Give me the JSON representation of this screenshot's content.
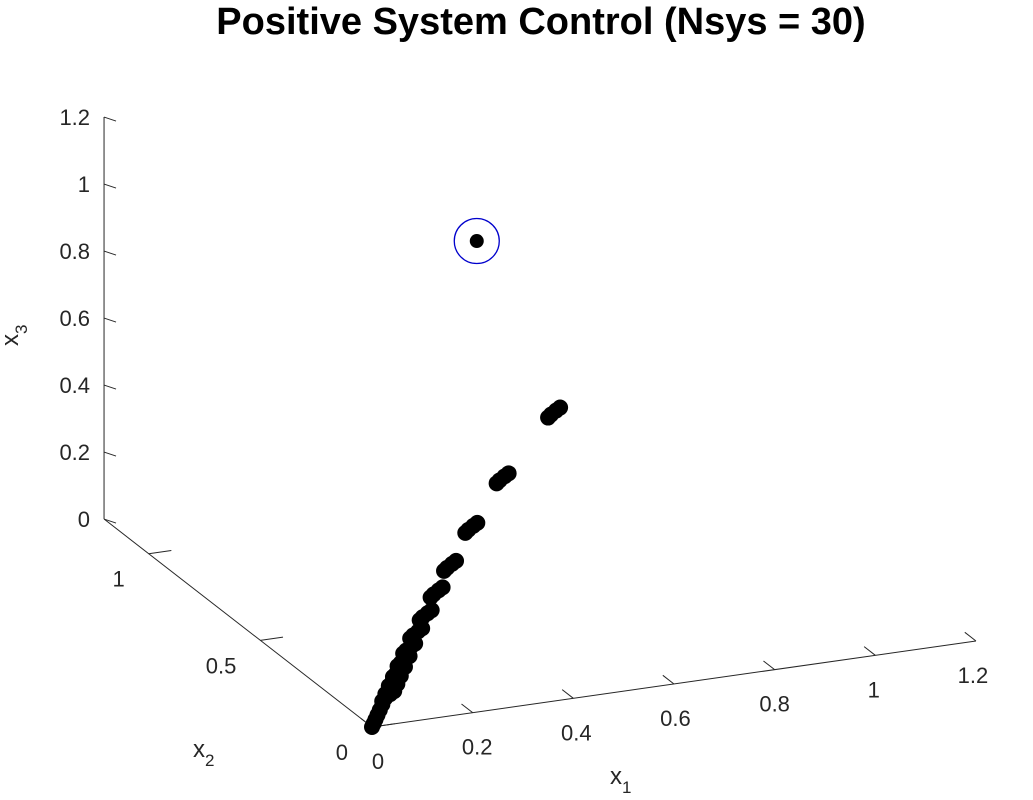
{
  "chart_data": {
    "type": "scatter",
    "title": "Positive System Control (Nsys = 30)",
    "axes": {
      "x": {
        "label": "x",
        "subscript": "1",
        "range": [
          0,
          1.2
        ],
        "ticks": [
          "0",
          "0.2",
          "0.4",
          "0.6",
          "0.8",
          "1",
          "1.2"
        ]
      },
      "y": {
        "label": "x",
        "subscript": "2",
        "range": [
          0,
          1.2
        ],
        "ticks": [
          "0",
          "0.5",
          "1"
        ]
      },
      "z": {
        "label": "x",
        "subscript": "3",
        "range": [
          0,
          1.2
        ],
        "ticks": [
          "0",
          "0.2",
          "0.4",
          "0.6",
          "0.8",
          "1",
          "1.2"
        ]
      }
    },
    "grid": false,
    "legend": "none",
    "marker_color": "#000000",
    "target_ring_color": "#0000cc",
    "target": {
      "x1": 0.43,
      "x2": 0.5,
      "x3": 1.1
    },
    "clusters": [
      {
        "x1": 0.0,
        "x2": 0.0,
        "x3": 0.0
      },
      {
        "x1": 0.007,
        "x2": 0.008,
        "x3": 0.005
      },
      {
        "x1": 0.014,
        "x2": 0.016,
        "x3": 0.011
      },
      {
        "x1": 0.022,
        "x2": 0.025,
        "x3": 0.018
      },
      {
        "x1": 0.031,
        "x2": 0.035,
        "x3": 0.026
      },
      {
        "x1": 0.041,
        "x2": 0.046,
        "x3": 0.035
      },
      {
        "x1": 0.052,
        "x2": 0.058,
        "x3": 0.045
      },
      {
        "x1": 0.064,
        "x2": 0.071,
        "x3": 0.057
      },
      {
        "x1": 0.077,
        "x2": 0.085,
        "x3": 0.071
      },
      {
        "x1": 0.092,
        "x2": 0.1,
        "x3": 0.087
      },
      {
        "x1": 0.11,
        "x2": 0.12,
        "x3": 0.105
      },
      {
        "x1": 0.13,
        "x2": 0.14,
        "x3": 0.128
      },
      {
        "x1": 0.155,
        "x2": 0.165,
        "x3": 0.155
      },
      {
        "x1": 0.185,
        "x2": 0.19,
        "x3": 0.19
      },
      {
        "x1": 0.22,
        "x2": 0.22,
        "x3": 0.235
      },
      {
        "x1": 0.26,
        "x2": 0.25,
        "x3": 0.29
      },
      {
        "x1": 0.32,
        "x2": 0.29,
        "x3": 0.37
      },
      {
        "x1": 0.4,
        "x2": 0.33,
        "x3": 0.48
      },
      {
        "x1": 0.52,
        "x2": 0.37,
        "x3": 0.63
      }
    ]
  }
}
